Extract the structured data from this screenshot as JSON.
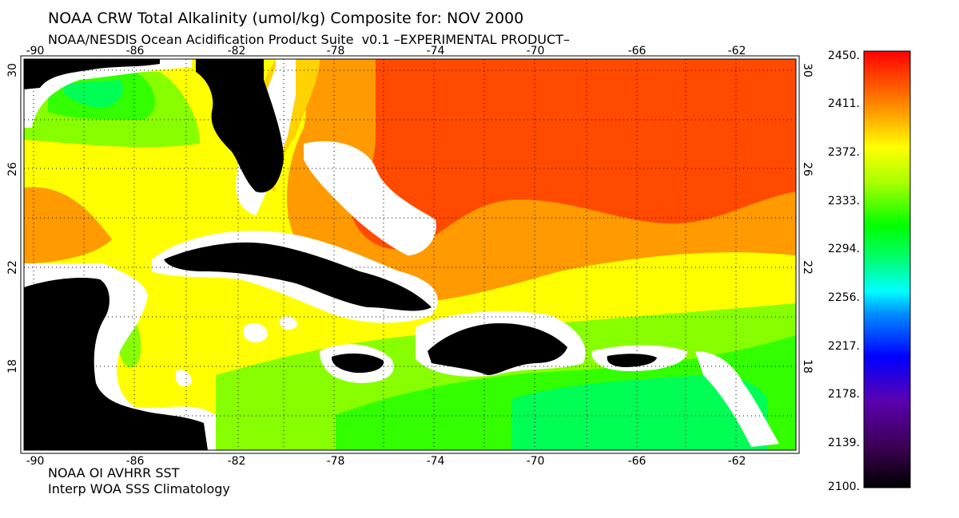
{
  "header": {
    "title": "NOAA CRW Total Alkalinity (umol/kg) Composite for: NOV 2000",
    "subtitle": "NOAA/NESDIS Ocean Acidification Product Suite  v0.1 –EXPERIMENTAL PRODUCT–"
  },
  "footer": {
    "line1": "NOAA OI AVHRR SST",
    "line2": "Interp WOA SSS Climatology"
  },
  "map": {
    "lon_ticks": [
      "-90",
      "-86",
      "-82",
      "-78",
      "-74",
      "-70",
      "-66",
      "-62"
    ],
    "lat_ticks": [
      "30",
      "26",
      "22",
      "18"
    ],
    "colors": {
      "land": "#000000",
      "mask": "#ffffff",
      "red_orange": "#ff4a00",
      "orange": "#ff9a00",
      "yellow_orange": "#ffd200",
      "yellow": "#ffff00",
      "yellow_green": "#c8ff00",
      "light_green": "#88ff00",
      "green": "#33ff00",
      "sea_green": "#00ff55"
    }
  },
  "colorbar": {
    "labels": [
      "2450.",
      "2411.",
      "2372.",
      "2333.",
      "2294.",
      "2256.",
      "2217.",
      "2178.",
      "2139.",
      "2100."
    ]
  }
}
